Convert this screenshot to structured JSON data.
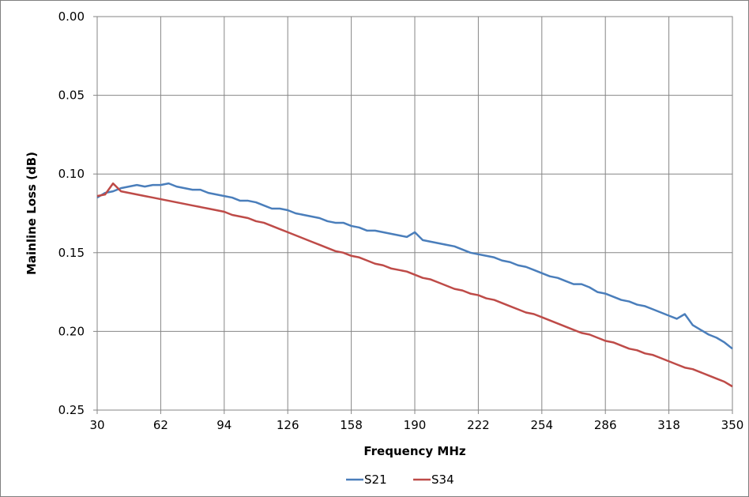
{
  "chart_data": {
    "type": "line",
    "title": "",
    "xlabel": "Frequency MHz",
    "ylabel": "Mainline Loss (dB)",
    "xlim": [
      30,
      350
    ],
    "ylim": [
      0.25,
      0.0
    ],
    "y_reversed": true,
    "grid": true,
    "legend_position": "bottom",
    "x_ticks": [
      "30",
      "62",
      "94",
      "126",
      "158",
      "190",
      "222",
      "254",
      "286",
      "318",
      "350"
    ],
    "x_tick_values": [
      30,
      62,
      94,
      126,
      158,
      190,
      222,
      254,
      286,
      318,
      350
    ],
    "y_ticks": [
      "0.00",
      "0.05",
      "0.10",
      "0.15",
      "0.20",
      "0.25"
    ],
    "y_tick_values": [
      0.0,
      0.05,
      0.1,
      0.15,
      0.2,
      0.25
    ],
    "series": [
      {
        "name": "S21",
        "color": "#4a7ebb",
        "x": [
          30,
          34,
          38,
          42,
          46,
          50,
          54,
          58,
          62,
          66,
          70,
          74,
          78,
          82,
          86,
          90,
          94,
          98,
          102,
          106,
          110,
          114,
          118,
          122,
          126,
          130,
          134,
          138,
          142,
          146,
          150,
          154,
          158,
          162,
          166,
          170,
          174,
          178,
          182,
          186,
          190,
          194,
          198,
          202,
          206,
          210,
          214,
          218,
          222,
          226,
          230,
          234,
          238,
          242,
          246,
          250,
          254,
          258,
          262,
          266,
          270,
          274,
          278,
          282,
          286,
          290,
          294,
          298,
          302,
          306,
          310,
          314,
          318,
          322,
          326,
          330,
          334,
          338,
          342,
          346,
          350
        ],
        "values": [
          0.115,
          0.112,
          0.111,
          0.109,
          0.108,
          0.107,
          0.108,
          0.107,
          0.107,
          0.106,
          0.108,
          0.109,
          0.11,
          0.11,
          0.112,
          0.113,
          0.114,
          0.115,
          0.117,
          0.117,
          0.118,
          0.12,
          0.122,
          0.122,
          0.123,
          0.125,
          0.126,
          0.127,
          0.128,
          0.13,
          0.131,
          0.131,
          0.133,
          0.134,
          0.136,
          0.136,
          0.137,
          0.138,
          0.139,
          0.14,
          0.137,
          0.142,
          0.143,
          0.144,
          0.145,
          0.146,
          0.148,
          0.15,
          0.151,
          0.152,
          0.153,
          0.155,
          0.156,
          0.158,
          0.159,
          0.161,
          0.163,
          0.165,
          0.166,
          0.168,
          0.17,
          0.17,
          0.172,
          0.175,
          0.176,
          0.178,
          0.18,
          0.181,
          0.183,
          0.184,
          0.186,
          0.188,
          0.19,
          0.192,
          0.189,
          0.196,
          0.199,
          0.202,
          0.204,
          0.207,
          0.211
        ]
      },
      {
        "name": "S34",
        "color": "#be4b48",
        "x": [
          30,
          34,
          38,
          42,
          46,
          50,
          54,
          58,
          62,
          66,
          70,
          74,
          78,
          82,
          86,
          90,
          94,
          98,
          102,
          106,
          110,
          114,
          118,
          122,
          126,
          130,
          134,
          138,
          142,
          146,
          150,
          154,
          158,
          162,
          166,
          170,
          174,
          178,
          182,
          186,
          190,
          194,
          198,
          202,
          206,
          210,
          214,
          218,
          222,
          226,
          230,
          234,
          238,
          242,
          246,
          250,
          254,
          258,
          262,
          266,
          270,
          274,
          278,
          282,
          286,
          290,
          294,
          298,
          302,
          306,
          310,
          314,
          318,
          322,
          326,
          330,
          334,
          338,
          342,
          346,
          350
        ],
        "values": [
          0.114,
          0.113,
          0.106,
          0.111,
          0.112,
          0.113,
          0.114,
          0.115,
          0.116,
          0.117,
          0.118,
          0.119,
          0.12,
          0.121,
          0.122,
          0.123,
          0.124,
          0.126,
          0.127,
          0.128,
          0.13,
          0.131,
          0.133,
          0.135,
          0.137,
          0.139,
          0.141,
          0.143,
          0.145,
          0.147,
          0.149,
          0.15,
          0.152,
          0.153,
          0.155,
          0.157,
          0.158,
          0.16,
          0.161,
          0.162,
          0.164,
          0.166,
          0.167,
          0.169,
          0.171,
          0.173,
          0.174,
          0.176,
          0.177,
          0.179,
          0.18,
          0.182,
          0.184,
          0.186,
          0.188,
          0.189,
          0.191,
          0.193,
          0.195,
          0.197,
          0.199,
          0.201,
          0.202,
          0.204,
          0.206,
          0.207,
          0.209,
          0.211,
          0.212,
          0.214,
          0.215,
          0.217,
          0.219,
          0.221,
          0.223,
          0.224,
          0.226,
          0.228,
          0.23,
          0.232,
          0.235
        ]
      }
    ]
  }
}
